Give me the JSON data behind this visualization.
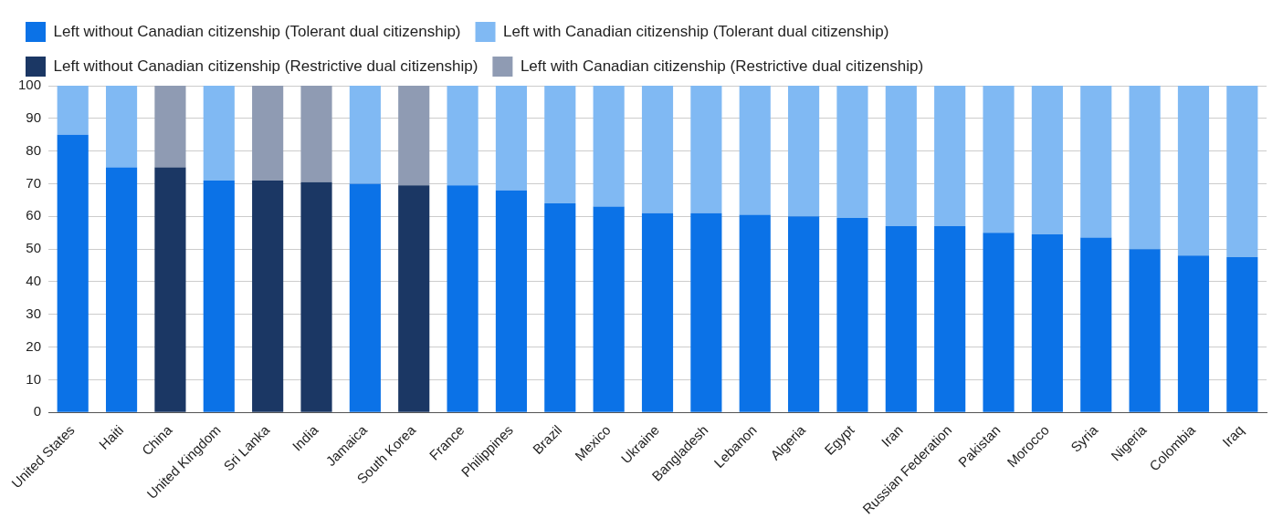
{
  "chart_data": {
    "type": "bar",
    "stacked": true,
    "legend": "top",
    "grid": "y",
    "categories": [
      "United States",
      "Haiti",
      "China",
      "United Kingdom",
      "Sri Lanka",
      "India",
      "Jamaica",
      "South Korea",
      "France",
      "Philippines",
      "Brazil",
      "Mexico",
      "Ukraine",
      "Bangladesh",
      "Lebanon",
      "Algeria",
      "Egypt",
      "Iran",
      "Russian Federation",
      "Pakistan",
      "Morocco",
      "Syria",
      "Nigeria",
      "Colombia",
      "Iraq"
    ],
    "series": [
      {
        "name": "Left without Canadian citizenship (Tolerant dual citizenship)",
        "color": "#0b72e7",
        "values": [
          85,
          75,
          null,
          71,
          null,
          null,
          70,
          null,
          69.5,
          68,
          64,
          63,
          61,
          61,
          60.5,
          60,
          59.5,
          57,
          57,
          55,
          54.5,
          53.5,
          50,
          48,
          47.5
        ]
      },
      {
        "name": "Left with Canadian citizenship (Tolerant dual citizenship)",
        "color": "#80b9f3",
        "values": [
          15,
          25,
          null,
          29,
          null,
          null,
          30,
          null,
          30.5,
          32,
          36,
          37,
          39,
          39,
          39.5,
          40,
          40.5,
          43,
          43,
          45,
          45.5,
          46.5,
          50,
          52,
          52.5
        ]
      },
      {
        "name": "Left without Canadian citizenship (Restrictive dual citizenship)",
        "color": "#1b3764",
        "values": [
          null,
          null,
          75,
          null,
          71,
          70.5,
          null,
          69.5,
          null,
          null,
          null,
          null,
          null,
          null,
          null,
          null,
          null,
          null,
          null,
          null,
          null,
          null,
          null,
          null,
          null
        ]
      },
      {
        "name": "Left with Canadian citizenship (Restrictive dual citizenship)",
        "color": "#8f9bb3",
        "values": [
          null,
          null,
          25,
          null,
          29,
          29.5,
          null,
          30.5,
          null,
          null,
          null,
          null,
          null,
          null,
          null,
          null,
          null,
          null,
          null,
          null,
          null,
          null,
          null,
          null,
          null
        ]
      }
    ],
    "ylim": [
      0,
      100
    ],
    "yticks": [
      0,
      10,
      20,
      30,
      40,
      50,
      60,
      70,
      80,
      90,
      100
    ]
  }
}
